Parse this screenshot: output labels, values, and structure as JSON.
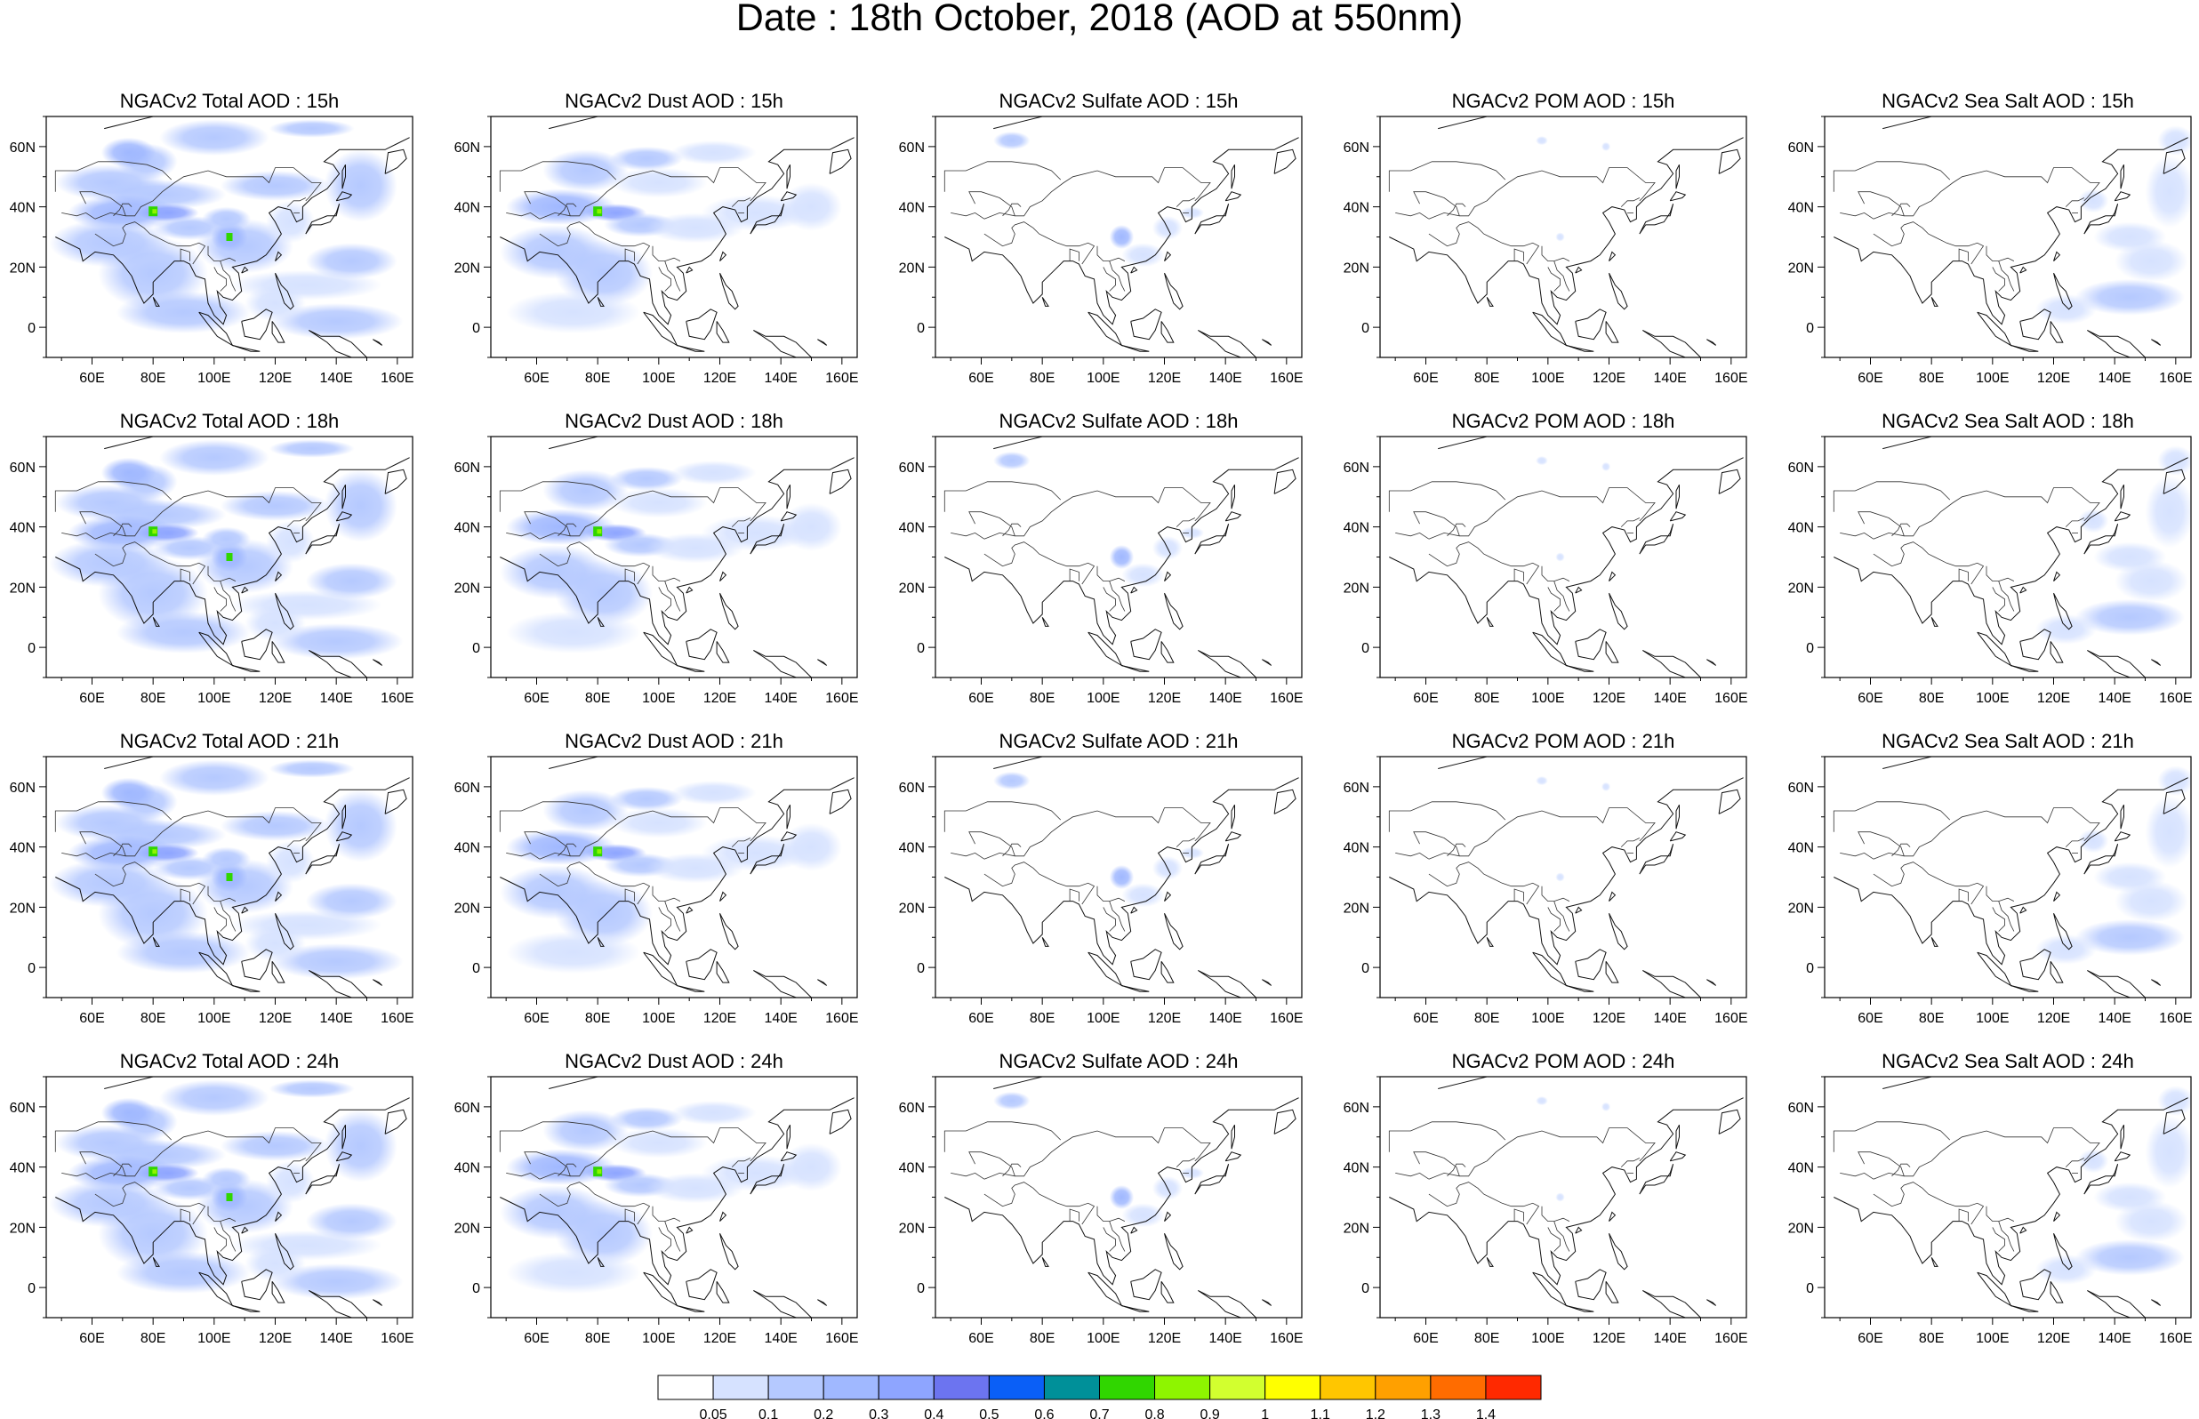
{
  "title": "Date : 18th October, 2018 (AOD at 550nm)",
  "panel_titles": [
    [
      "NGACv2 Total AOD : 15h",
      "NGACv2 Dust AOD : 15h",
      "NGACv2 Sulfate AOD : 15h",
      "NGACv2 POM AOD : 15h",
      "NGACv2 Sea Salt AOD : 15h"
    ],
    [
      "NGACv2 Total AOD : 18h",
      "NGACv2 Dust AOD : 18h",
      "NGACv2 Sulfate AOD : 18h",
      "NGACv2 POM AOD : 18h",
      "NGACv2 Sea Salt AOD : 18h"
    ],
    [
      "NGACv2 Total AOD : 21h",
      "NGACv2 Dust AOD : 21h",
      "NGACv2 Sulfate AOD : 21h",
      "NGACv2 POM AOD : 21h",
      "NGACv2 Sea Salt AOD : 21h"
    ],
    [
      "NGACv2 Total AOD : 24h",
      "NGACv2 Dust AOD : 24h",
      "NGACv2 Sulfate AOD : 24h",
      "NGACv2 POM AOD : 24h",
      "NGACv2 Sea Salt  AOD : 24h"
    ]
  ],
  "x_ticks": [
    "60E",
    "80E",
    "100E",
    "120E",
    "140E",
    "160E"
  ],
  "y_ticks": [
    "60N",
    "40N",
    "20N",
    "0"
  ],
  "x_tick_values": [
    60,
    80,
    100,
    120,
    140,
    160
  ],
  "y_tick_values": [
    60,
    40,
    20,
    0
  ],
  "map_extent": {
    "lon": [
      45,
      165
    ],
    "lat": [
      -10,
      70
    ]
  },
  "colorbar": {
    "labels": [
      "0.05",
      "0.1",
      "0.2",
      "0.3",
      "0.4",
      "0.5",
      "0.6",
      "0.7",
      "0.8",
      "0.9",
      "1",
      "1.1",
      "1.2",
      "1.3",
      "1.4"
    ],
    "colors": [
      "#ffffff",
      "#d6e2ff",
      "#b5c9ff",
      "#a0b8ff",
      "#8ea5ff",
      "#6c74f0",
      "#0a5ff7",
      "#009099",
      "#30d600",
      "#8ef500",
      "#d2ff2f",
      "#ffff00",
      "#ffc600",
      "#ffa000",
      "#ff6c00",
      "#ff2900"
    ]
  }
}
